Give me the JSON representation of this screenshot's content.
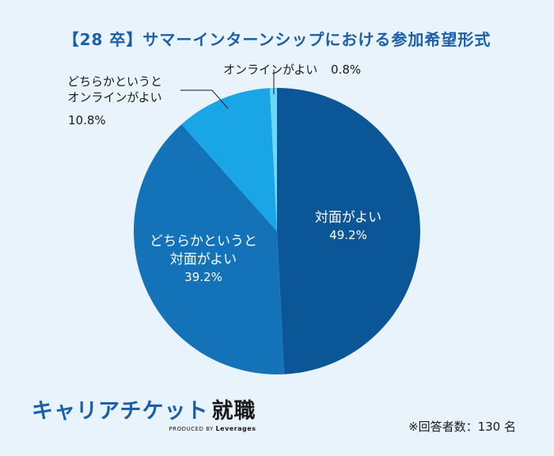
{
  "chart_data": {
    "type": "pie",
    "title": "【28 卒】サマーインターンシップにおける参加希望形式",
    "slices": [
      {
        "label": "対面がよい",
        "value": 49.2,
        "value_label": "49.2%",
        "color": "#0b5696"
      },
      {
        "label": "どちらかというと対面がよい",
        "value": 39.2,
        "value_label": "39.2%",
        "color": "#1472b8"
      },
      {
        "label": "どちらかというとオンラインがよい",
        "value": 10.8,
        "value_label": "10.8%",
        "color": "#1aa5e6"
      },
      {
        "label": "オンラインがよい",
        "value": 0.8,
        "value_label": "0.8%",
        "color": "#6ad6f8"
      }
    ],
    "start": "12 o'clock",
    "direction": "clockwise"
  },
  "labels": {
    "s1_line1": "対面がよい",
    "s1_pct": "49.2%",
    "s2_line1": "どちらかというと",
    "s2_line2": "対面がよい",
    "s2_pct": "39.2%",
    "s3_line1": "どちらかというと",
    "s3_line2": "オンラインがよい",
    "s3_pct": "10.8%",
    "s4_line1": "オンラインがよい",
    "s4_pct": "0.8%"
  },
  "brand": {
    "name": "キャリアチケット",
    "accent": "就職",
    "produced_by": "PRODUCED BY",
    "company": "Leverages"
  },
  "footnote": "※回答者数：130 名"
}
